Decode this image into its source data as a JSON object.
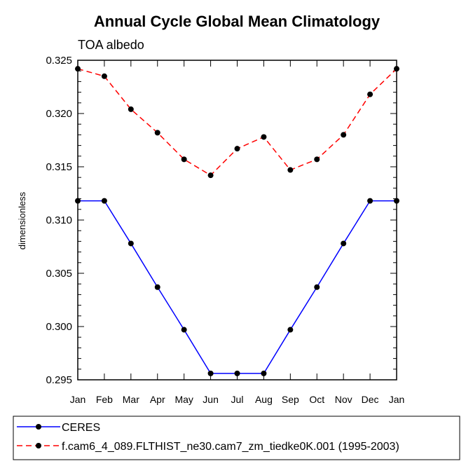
{
  "chart_data": {
    "type": "line",
    "title": "Annual Cycle Global Mean Climatology",
    "subtitle": "TOA albedo",
    "xlabel": "",
    "ylabel": "dimensionless",
    "categories": [
      "Jan",
      "Feb",
      "Mar",
      "Apr",
      "May",
      "Jun",
      "Jul",
      "Aug",
      "Sep",
      "Oct",
      "Nov",
      "Dec",
      "Jan"
    ],
    "ylim": [
      0.295,
      0.325
    ],
    "yticks": [
      "0.295",
      "0.300",
      "0.305",
      "0.310",
      "0.315",
      "0.320",
      "0.325"
    ],
    "series": [
      {
        "name": "CERES",
        "color": "#0000ff",
        "dash": "solid",
        "values": [
          0.3118,
          0.3118,
          0.3078,
          0.3037,
          0.2997,
          0.2956,
          0.2956,
          0.2956,
          0.2997,
          0.3037,
          0.3078,
          0.3118,
          0.3118
        ]
      },
      {
        "name": "f.cam6_4_089.FLTHIST_ne30.cam7_zm_tiedke0K.001 (1995-2003)",
        "color": "#ff0000",
        "dash": "dashed",
        "values": [
          0.3242,
          0.3235,
          0.3204,
          0.3182,
          0.3157,
          0.3142,
          0.3167,
          0.3178,
          0.3147,
          0.3157,
          0.318,
          0.3218,
          0.3242
        ]
      }
    ],
    "legend": "bottom"
  }
}
